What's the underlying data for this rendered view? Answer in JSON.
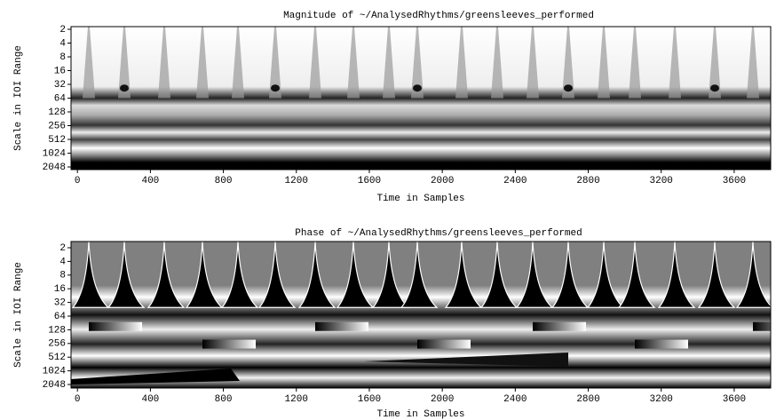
{
  "chart_data": [
    {
      "type": "heatmap",
      "title": "Magnitude of ~/AnalysedRhythms/greensleeves_performed",
      "x_label": "Time in Samples",
      "y_label": "Scale in IOI Range",
      "xlim": [
        -35,
        3800
      ],
      "xticks": [
        0,
        400,
        800,
        1200,
        1600,
        2000,
        2400,
        2800,
        3200,
        3600
      ],
      "ylim": [
        1.75,
        2340
      ],
      "yscale": "log",
      "yticks": [
        2,
        4,
        8,
        16,
        32,
        64,
        128,
        256,
        512,
        1024,
        2048
      ]
    },
    {
      "type": "heatmap",
      "title": "Phase of ~/AnalysedRhythms/greensleeves_performed",
      "x_label": "Time in Samples",
      "y_label": "Scale in IOI Range",
      "xlim": [
        -35,
        3800
      ],
      "xticks": [
        0,
        400,
        800,
        1200,
        1600,
        2000,
        2400,
        2800,
        3200,
        3600
      ],
      "ylim": [
        1.46,
        2450
      ],
      "yscale": "log",
      "yticks": [
        2,
        4,
        8,
        16,
        32,
        64,
        128,
        256,
        512,
        1024,
        2048
      ]
    }
  ]
}
